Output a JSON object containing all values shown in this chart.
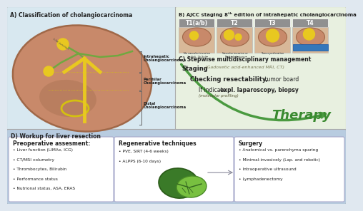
{
  "title_A": "A) Classification of cholangiocarcinoma",
  "title_B": "B) AJCC staging 8ᵗʰ edition of intrahepatic cholangiocarcinoma",
  "title_C": "C) Stepwise multidisciplinary management",
  "title_D": "D) Workup for liver resection",
  "staging_cols": [
    "T1(a/b)",
    "T2",
    "T3",
    "T4"
  ],
  "staging_notes": [
    "No vascular invasion\n1a-Soli, 1b-Soli",
    "Vascular invasion or\nMultiple lesions",
    "Tumor perforation",
    ""
  ],
  "stepwise_bold": [
    "Staging",
    "Checking resectability,",
    "If indicate expl. laparoscopy, biopsy"
  ],
  "stepwise_italic": [
    "(Gadoxetic acid-enhanced MRI, CT)",
    " tumor board",
    "(molecular profiling)"
  ],
  "therapy_text": "Therapy",
  "preop_title": "Preoperative assesment:",
  "preop_items": [
    "Liver function (LIMAx, ICG)",
    "CT/MRI volumetry",
    "Thrombocytes, Bilirubin",
    "Performance status",
    "Nutrional status, ASA, ERAS"
  ],
  "regen_title": "Regenerative techniques",
  "regen_items": [
    "PVE, SIRT (4-6 weeks)",
    "ALPPS (6-10 days)"
  ],
  "surgery_title": "Surgery",
  "surgery_items": [
    "Anatomical vs. parenchyma sparing",
    "Minimal-invasively (Lap. and robotic)",
    "Intraoperative ultrasound",
    "Lymphadenectomy"
  ],
  "bg_top_A": "#d8e8f0",
  "bg_top_BC": "#e8f0e0",
  "bg_bottom_D": "#b8cce0",
  "liver_fill": "#c8896a",
  "liver_edge": "#a06848",
  "liver_dark_patch": "#b07858",
  "yellow_tumor": "#e8c820",
  "yellow_duct": "#d4c010",
  "green_duct": "#70a840",
  "staging_hdr_bg": "#909090",
  "staging_row_bg": "#d8b898",
  "therapy_green": "#3a8a30",
  "arrow_green": "#4a9a40",
  "box_white": "#ffffff",
  "box_border": "#aaaacc",
  "text_dark": "#222222",
  "text_mid": "#444444",
  "panel_border": "#aaaaaa"
}
